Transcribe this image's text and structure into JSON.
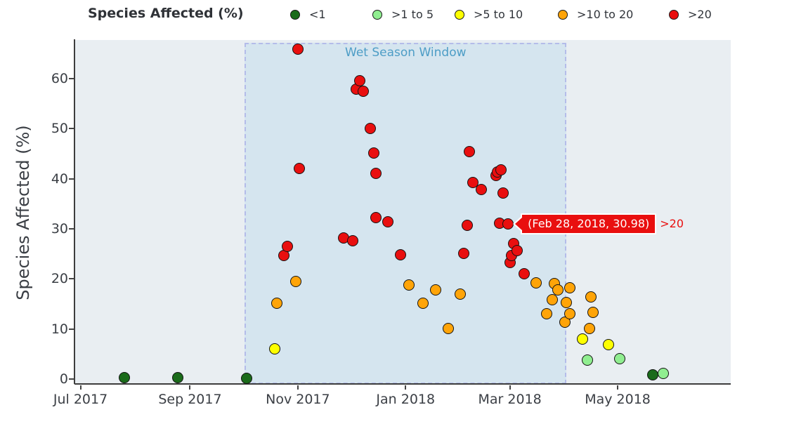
{
  "legend": {
    "title": "Species Affected (%)",
    "items": [
      {
        "label": "<1",
        "color": "#1a6b1a"
      },
      {
        "label": ">1 to 5",
        "color": "#90ee90"
      },
      {
        "label": ">5 to 10",
        "color": "#fdff00"
      },
      {
        "label": ">10 to 20",
        "color": "#ffa408"
      },
      {
        "label": ">20",
        "color": "#e90f0f"
      }
    ]
  },
  "annotations": {
    "season_window_label": "Wet Season Window",
    "tooltip": {
      "text": "(Feb 28, 2018, 30.98)",
      "series_label": ">20",
      "anchor_date": "2018-02-28",
      "anchor_value": 30.98,
      "color": "#e90f0f"
    }
  },
  "chart_data": {
    "type": "scatter",
    "title": "",
    "xlabel": "",
    "ylabel": "Species Affected (%)",
    "x_range": [
      "2017-06-28",
      "2018-07-04"
    ],
    "y_range": [
      -0.85,
      67.7
    ],
    "grid": false,
    "legend_position": "top",
    "x_ticks": [
      {
        "date": "2017-07-01",
        "label": "Jul 2017"
      },
      {
        "date": "2017-09-01",
        "label": "Sep 2017"
      },
      {
        "date": "2017-11-01",
        "label": "Nov 2017"
      },
      {
        "date": "2018-01-01",
        "label": "Jan 2018"
      },
      {
        "date": "2018-03-01",
        "label": "Mar 2018"
      },
      {
        "date": "2018-05-01",
        "label": "May 2018"
      }
    ],
    "y_ticks": [
      0,
      10,
      20,
      30,
      40,
      50,
      60
    ],
    "wet_season_window": {
      "start": "2017-10-02",
      "end": "2018-04-02"
    },
    "series": [
      {
        "name": "<1",
        "color": "#1a6b1a",
        "points": [
          {
            "date": "2017-07-26",
            "value": 0.3
          },
          {
            "date": "2017-08-25",
            "value": 0.3
          },
          {
            "date": "2017-10-03",
            "value": 0.2
          },
          {
            "date": "2018-05-21",
            "value": 0.8
          }
        ]
      },
      {
        "name": ">1 to 5",
        "color": "#90ee90",
        "points": [
          {
            "date": "2018-04-14",
            "value": 3.8
          },
          {
            "date": "2018-05-02",
            "value": 4.1
          },
          {
            "date": "2018-05-27",
            "value": 1.1
          }
        ]
      },
      {
        "name": ">5 to 10",
        "color": "#fdff00",
        "points": [
          {
            "date": "2017-10-19",
            "value": 6.0
          },
          {
            "date": "2018-04-11",
            "value": 8.0
          },
          {
            "date": "2018-04-26",
            "value": 6.9
          }
        ]
      },
      {
        "name": ">10 to 20",
        "color": "#ffa408",
        "points": [
          {
            "date": "2017-10-20",
            "value": 15.1
          },
          {
            "date": "2017-10-31",
            "value": 19.5
          },
          {
            "date": "2018-01-03",
            "value": 18.8
          },
          {
            "date": "2018-01-11",
            "value": 15.1
          },
          {
            "date": "2018-01-18",
            "value": 17.8
          },
          {
            "date": "2018-01-25",
            "value": 10.1
          },
          {
            "date": "2018-02-01",
            "value": 17.0
          },
          {
            "date": "2018-03-16",
            "value": 19.2
          },
          {
            "date": "2018-03-22",
            "value": 13.0
          },
          {
            "date": "2018-03-25",
            "value": 15.8
          },
          {
            "date": "2018-03-26",
            "value": 19.1
          },
          {
            "date": "2018-03-28",
            "value": 17.8
          },
          {
            "date": "2018-04-01",
            "value": 11.4
          },
          {
            "date": "2018-04-02",
            "value": 15.3
          },
          {
            "date": "2018-04-04",
            "value": 18.2
          },
          {
            "date": "2018-04-04",
            "value": 13.0
          },
          {
            "date": "2018-04-15",
            "value": 10.1
          },
          {
            "date": "2018-04-16",
            "value": 16.4
          },
          {
            "date": "2018-04-17",
            "value": 13.3
          }
        ]
      },
      {
        "name": ">20",
        "color": "#e90f0f",
        "points": [
          {
            "date": "2017-10-24",
            "value": 24.7
          },
          {
            "date": "2017-10-26",
            "value": 26.5
          },
          {
            "date": "2017-11-01",
            "value": 65.9
          },
          {
            "date": "2017-11-02",
            "value": 42.1
          },
          {
            "date": "2017-11-27",
            "value": 28.2
          },
          {
            "date": "2017-12-02",
            "value": 27.6
          },
          {
            "date": "2017-12-04",
            "value": 57.9
          },
          {
            "date": "2017-12-06",
            "value": 59.6
          },
          {
            "date": "2017-12-08",
            "value": 57.5
          },
          {
            "date": "2017-12-12",
            "value": 50.0
          },
          {
            "date": "2017-12-14",
            "value": 45.1
          },
          {
            "date": "2017-12-15",
            "value": 41.1
          },
          {
            "date": "2017-12-15",
            "value": 32.2
          },
          {
            "date": "2017-12-22",
            "value": 31.4
          },
          {
            "date": "2017-12-29",
            "value": 24.8
          },
          {
            "date": "2018-02-03",
            "value": 25.1
          },
          {
            "date": "2018-02-05",
            "value": 30.7
          },
          {
            "date": "2018-02-06",
            "value": 45.4
          },
          {
            "date": "2018-02-08",
            "value": 39.3
          },
          {
            "date": "2018-02-13",
            "value": 37.9
          },
          {
            "date": "2018-02-21",
            "value": 40.7
          },
          {
            "date": "2018-02-22",
            "value": 41.4
          },
          {
            "date": "2018-02-24",
            "value": 41.8
          },
          {
            "date": "2018-02-25",
            "value": 37.2
          },
          {
            "date": "2018-02-23",
            "value": 31.1
          },
          {
            "date": "2018-02-28",
            "value": 30.98
          },
          {
            "date": "2018-03-01",
            "value": 23.3
          },
          {
            "date": "2018-03-02",
            "value": 24.7
          },
          {
            "date": "2018-03-03",
            "value": 27.1
          },
          {
            "date": "2018-03-05",
            "value": 25.7
          },
          {
            "date": "2018-03-09",
            "value": 21.0
          }
        ]
      }
    ]
  }
}
